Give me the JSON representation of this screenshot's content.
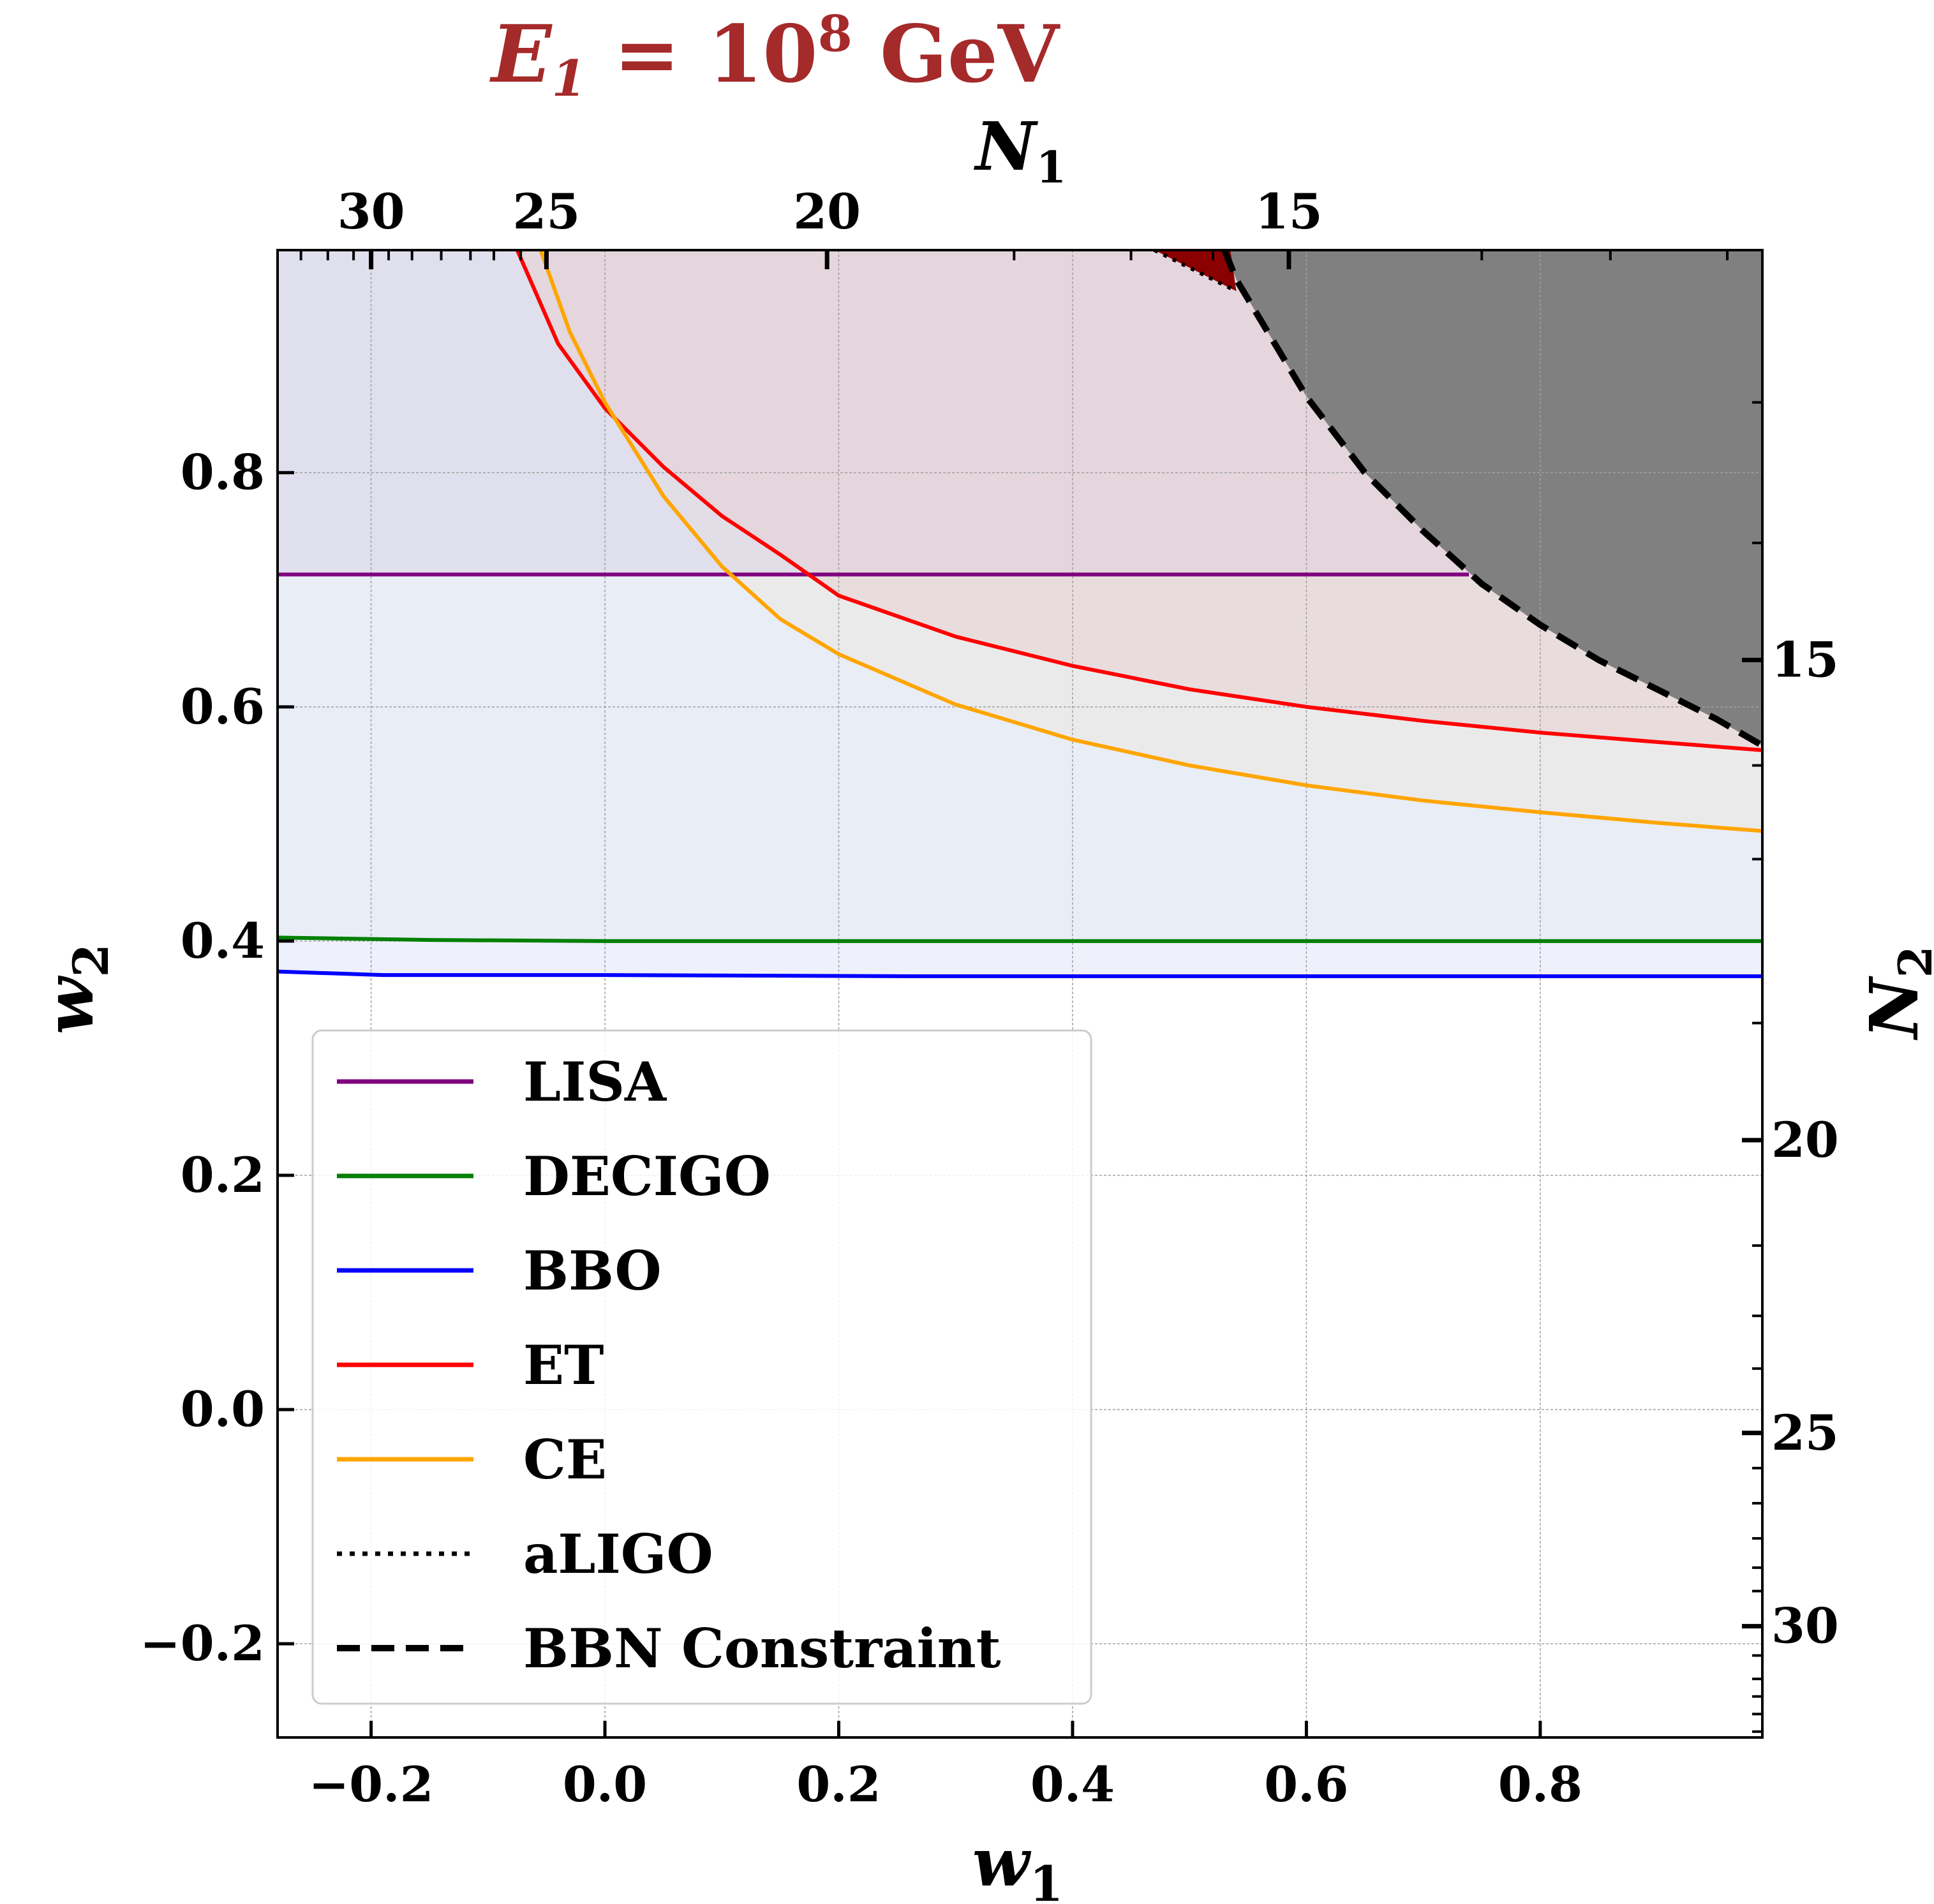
{
  "chart_data": {
    "type": "line",
    "title": {
      "prefix": "E",
      "sub": "1",
      "eq": " = 10",
      "sup": "8",
      "unit": " GeV",
      "color": "#a52a2a"
    },
    "xlabel": {
      "main": "w",
      "sub": "1"
    },
    "ylabel": {
      "main": "w",
      "sub": "2"
    },
    "top_axis_label": {
      "main": "N",
      "sub": "1"
    },
    "right_axis_label": {
      "main": "N",
      "sub": "2"
    },
    "xlim": [
      -0.28,
      0.99
    ],
    "ylim": [
      -0.28,
      0.99
    ],
    "x_ticks": [
      {
        "value": -0.2,
        "label": "−0.2"
      },
      {
        "value": 0.0,
        "label": "0.0"
      },
      {
        "value": 0.2,
        "label": "0.2"
      },
      {
        "value": 0.4,
        "label": "0.4"
      },
      {
        "value": 0.6,
        "label": "0.6"
      },
      {
        "value": 0.8,
        "label": "0.8"
      }
    ],
    "y_ticks": [
      {
        "value": -0.2,
        "label": "−0.2"
      },
      {
        "value": 0.0,
        "label": "0.0"
      },
      {
        "value": 0.2,
        "label": "0.2"
      },
      {
        "value": 0.4,
        "label": "0.4"
      },
      {
        "value": 0.6,
        "label": "0.6"
      },
      {
        "value": 0.8,
        "label": "0.8"
      }
    ],
    "top_ticks": [
      {
        "w": -0.2,
        "label": "30"
      },
      {
        "w": -0.05,
        "label": "25"
      },
      {
        "w": 0.19,
        "label": "20"
      },
      {
        "w": 0.585,
        "label": "15"
      }
    ],
    "right_ticks": [
      {
        "w": 0.64,
        "label": "15"
      },
      {
        "w": 0.23,
        "label": "20"
      },
      {
        "w": -0.02,
        "label": "25"
      },
      {
        "w": -0.185,
        "label": "30"
      }
    ],
    "grid": true,
    "series": [
      {
        "name": "LISA",
        "color": "#800080",
        "style": "solid",
        "fill": "#d9d4e6",
        "x": [
          -0.28,
          0.739
        ],
        "y": [
          0.713,
          0.713
        ]
      },
      {
        "name": "DECIGO",
        "color": "#008000",
        "style": "solid",
        "fill": "#e3ebf3",
        "x": [
          -0.28,
          -0.15,
          0.0,
          0.2,
          0.4,
          0.6,
          0.8,
          0.99
        ],
        "y": [
          0.403,
          0.401,
          0.4,
          0.4,
          0.4,
          0.4,
          0.4,
          0.4
        ]
      },
      {
        "name": "BBO",
        "color": "#0000ff",
        "style": "solid",
        "fill": "#eef0fb",
        "x": [
          -0.28,
          -0.19,
          0.0,
          0.26,
          0.4,
          0.6,
          0.8,
          0.99
        ],
        "y": [
          0.374,
          0.371,
          0.371,
          0.37,
          0.37,
          0.37,
          0.37,
          0.37
        ]
      },
      {
        "name": "ET",
        "color": "#ff0000",
        "style": "solid",
        "fill": "#e8cfd2",
        "x": [
          -0.075,
          -0.04,
          0.0,
          0.05,
          0.1,
          0.15,
          0.2,
          0.3,
          0.4,
          0.5,
          0.6,
          0.7,
          0.8,
          0.9,
          0.99
        ],
        "y": [
          0.99,
          0.91,
          0.855,
          0.805,
          0.763,
          0.73,
          0.695,
          0.66,
          0.635,
          0.615,
          0.6,
          0.588,
          0.578,
          0.57,
          0.563
        ]
      },
      {
        "name": "CE",
        "color": "#ffa500",
        "style": "solid",
        "fill": "#ede8e1",
        "x": [
          -0.055,
          -0.03,
          0.0,
          0.05,
          0.1,
          0.15,
          0.2,
          0.3,
          0.4,
          0.5,
          0.6,
          0.7,
          0.8,
          0.9,
          0.99
        ],
        "y": [
          0.99,
          0.92,
          0.86,
          0.78,
          0.72,
          0.675,
          0.645,
          0.602,
          0.572,
          0.55,
          0.533,
          0.52,
          0.51,
          0.501,
          0.494
        ]
      },
      {
        "name": "aLIGO",
        "color": "#000000",
        "style": "dotted",
        "fill": "#8b0000",
        "x": [
          0.47,
          0.5,
          0.53,
          0.54
        ],
        "y": [
          0.99,
          0.975,
          0.96,
          0.955
        ]
      },
      {
        "name": "BBN Constraint",
        "color": "#000000",
        "style": "dashed",
        "fill": "#808080",
        "x": [
          0.53,
          0.54,
          0.6,
          0.65,
          0.7,
          0.75,
          0.8,
          0.85,
          0.9,
          0.95,
          0.99
        ],
        "y": [
          0.99,
          0.965,
          0.865,
          0.8,
          0.75,
          0.705,
          0.67,
          0.64,
          0.615,
          0.59,
          0.567
        ]
      }
    ]
  }
}
